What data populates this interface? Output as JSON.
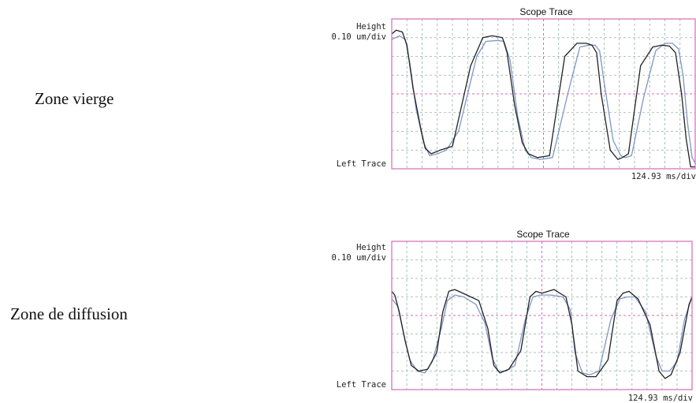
{
  "rows": [
    {
      "label": "Zone vierge"
    },
    {
      "label": "Zone de diffusion"
    }
  ],
  "chart_data": [
    {
      "type": "line",
      "title": "Scope Trace",
      "ylabel_line1": "Height",
      "ylabel_line2": "0.10 um/div",
      "bottom_label": "Left Trace",
      "xscale_label": "124.93 ms/div",
      "grid": true,
      "xlim": [
        0,
        10
      ],
      "ylim": [
        0,
        8
      ],
      "series": [
        {
          "color": "#222222",
          "x": [
            0,
            0.15,
            0.35,
            0.5,
            0.7,
            0.95,
            1.1,
            1.3,
            1.6,
            2.0,
            2.6,
            3.0,
            3.3,
            3.5,
            3.65,
            3.8,
            4.05,
            4.3,
            4.5,
            4.8,
            5.2,
            5.7,
            6.1,
            6.4,
            6.6,
            6.75,
            6.9,
            7.2,
            7.45,
            7.6,
            7.8,
            8.2,
            8.6,
            8.9,
            9.15,
            9.35,
            9.55,
            9.7,
            9.85,
            10.0
          ],
          "y": [
            7.2,
            7.4,
            7.3,
            6.6,
            4.3,
            2.2,
            1.1,
            0.8,
            1.0,
            1.2,
            5.5,
            7.0,
            7.1,
            7.05,
            7.0,
            6.2,
            3.4,
            1.4,
            0.8,
            0.6,
            0.7,
            6.0,
            6.7,
            6.7,
            6.6,
            6.2,
            4.0,
            1.0,
            0.5,
            0.6,
            0.8,
            5.5,
            6.5,
            6.6,
            6.55,
            6.2,
            4.0,
            1.6,
            0.1,
            0.1
          ]
        },
        {
          "color": "#7f96c8",
          "x": [
            0,
            0.25,
            0.45,
            0.6,
            0.8,
            1.05,
            1.25,
            1.5,
            1.8,
            2.2,
            2.8,
            3.1,
            3.5,
            3.7,
            3.9,
            4.15,
            4.4,
            4.6,
            4.9,
            5.3,
            5.8,
            6.2,
            6.5,
            6.7,
            6.85,
            7.0,
            7.3,
            7.55,
            7.7,
            7.9,
            8.3,
            8.7,
            9.0,
            9.25,
            9.45,
            9.6,
            9.75,
            9.9,
            10.0
          ],
          "y": [
            6.9,
            7.1,
            6.9,
            5.6,
            3.2,
            1.4,
            0.7,
            0.8,
            1.0,
            2.0,
            6.0,
            6.8,
            6.85,
            6.8,
            5.8,
            2.8,
            1.0,
            0.6,
            0.5,
            0.6,
            4.0,
            6.5,
            6.6,
            6.6,
            6.3,
            4.6,
            1.5,
            0.7,
            0.6,
            0.7,
            3.8,
            6.3,
            6.7,
            6.7,
            6.4,
            5.0,
            2.4,
            0.6,
            0.3
          ]
        }
      ]
    },
    {
      "type": "line",
      "title": "Scope Trace",
      "ylabel_line1": "Height",
      "ylabel_line2": "0.10 um/div",
      "bottom_label": "Left Trace",
      "xscale_label": "124.93 ms/div",
      "grid": true,
      "xlim": [
        0,
        10
      ],
      "ylim": [
        0,
        8
      ],
      "series": [
        {
          "color": "#222222",
          "x": [
            0,
            0.1,
            0.25,
            0.45,
            0.65,
            0.9,
            1.2,
            1.5,
            1.7,
            1.9,
            2.1,
            2.5,
            2.9,
            3.2,
            3.4,
            3.6,
            3.9,
            4.3,
            4.6,
            4.8,
            5.0,
            5.4,
            5.8,
            6.0,
            6.2,
            6.5,
            6.8,
            7.2,
            7.5,
            7.7,
            7.9,
            8.2,
            8.6,
            8.9,
            9.1,
            9.3,
            9.6,
            9.9,
            10.0
          ],
          "y": [
            5.3,
            5.1,
            4.2,
            2.6,
            1.3,
            1.0,
            1.1,
            2.0,
            4.2,
            5.3,
            5.4,
            5.1,
            4.8,
            3.3,
            1.3,
            0.9,
            1.1,
            2.1,
            5.0,
            5.3,
            5.2,
            5.4,
            5.0,
            3.5,
            1.0,
            0.7,
            0.7,
            1.6,
            4.8,
            5.2,
            5.3,
            4.9,
            3.5,
            1.0,
            0.6,
            0.8,
            2.0,
            4.6,
            5.0
          ]
        },
        {
          "color": "#7f96c8",
          "x": [
            0,
            0.2,
            0.4,
            0.6,
            0.85,
            1.1,
            1.35,
            1.65,
            1.85,
            2.1,
            2.4,
            2.8,
            3.1,
            3.35,
            3.55,
            3.8,
            4.1,
            4.45,
            4.7,
            4.95,
            5.3,
            5.7,
            5.95,
            6.1,
            6.35,
            6.6,
            6.9,
            7.3,
            7.6,
            7.85,
            8.1,
            8.45,
            8.8,
            9.0,
            9.25,
            9.5,
            9.75,
            10.0
          ],
          "y": [
            4.9,
            4.5,
            3.0,
            1.6,
            1.0,
            0.9,
            1.5,
            3.3,
            4.8,
            5.1,
            5.0,
            4.6,
            3.6,
            1.7,
            1.0,
            1.0,
            1.3,
            3.8,
            5.0,
            5.1,
            5.1,
            5.0,
            4.3,
            2.0,
            0.9,
            0.8,
            1.0,
            3.8,
            4.9,
            5.0,
            5.0,
            4.2,
            1.8,
            1.0,
            1.0,
            1.5,
            3.8,
            5.0
          ]
        }
      ]
    }
  ]
}
